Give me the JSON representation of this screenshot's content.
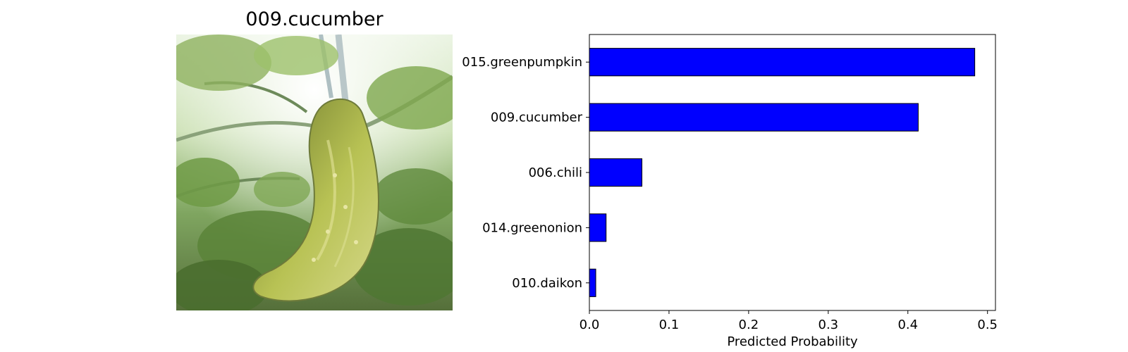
{
  "image_panel": {
    "title": "009.cucumber",
    "subject_icon": "cucumber-photo"
  },
  "colors": {
    "bar_fill": "#0000ff",
    "bar_edge": "#000000",
    "axes": "#000000",
    "background": "#ffffff"
  },
  "chart_data": {
    "type": "bar",
    "orientation": "horizontal",
    "categories": [
      "015.greenpumpkin",
      "009.cucumber",
      "006.chili",
      "014.greenonion",
      "010.daikon"
    ],
    "values": [
      0.484,
      0.413,
      0.066,
      0.021,
      0.008
    ],
    "xlabel": "Predicted Probability",
    "ylabel": "",
    "xlim": [
      0.0,
      0.51
    ],
    "xticks": [
      "0.0",
      "0.1",
      "0.2",
      "0.3",
      "0.4",
      "0.5"
    ],
    "xtick_values": [
      0.0,
      0.1,
      0.2,
      0.3,
      0.4,
      0.5
    ],
    "grid": false,
    "legend": "none"
  }
}
